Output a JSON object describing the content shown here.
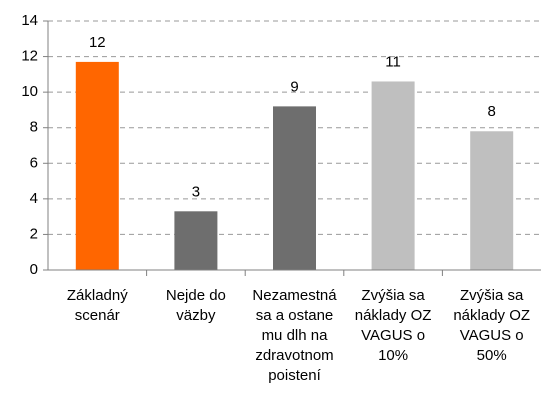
{
  "chart_data": {
    "type": "bar",
    "categories": [
      "Základný scenár",
      "Nejde do väzby",
      "Nezamestná sa a ostane mu dlh na zdravotnom poistení",
      "Zvýšia sa náklady OZ VAGUS o 10%",
      "Zvýšia sa náklady OZ VAGUS o 50%"
    ],
    "values": [
      11.7,
      3.3,
      9.2,
      10.6,
      7.8
    ],
    "value_labels": [
      "12",
      "3",
      "9",
      "11",
      "8"
    ],
    "colors": [
      "#ff6600",
      "#6e6e6e",
      "#6e6e6e",
      "#bfbfbf",
      "#bfbfbf"
    ],
    "ylim": [
      0,
      14
    ],
    "yticks": [
      0,
      2,
      4,
      6,
      8,
      10,
      12,
      14
    ],
    "grid": true
  }
}
